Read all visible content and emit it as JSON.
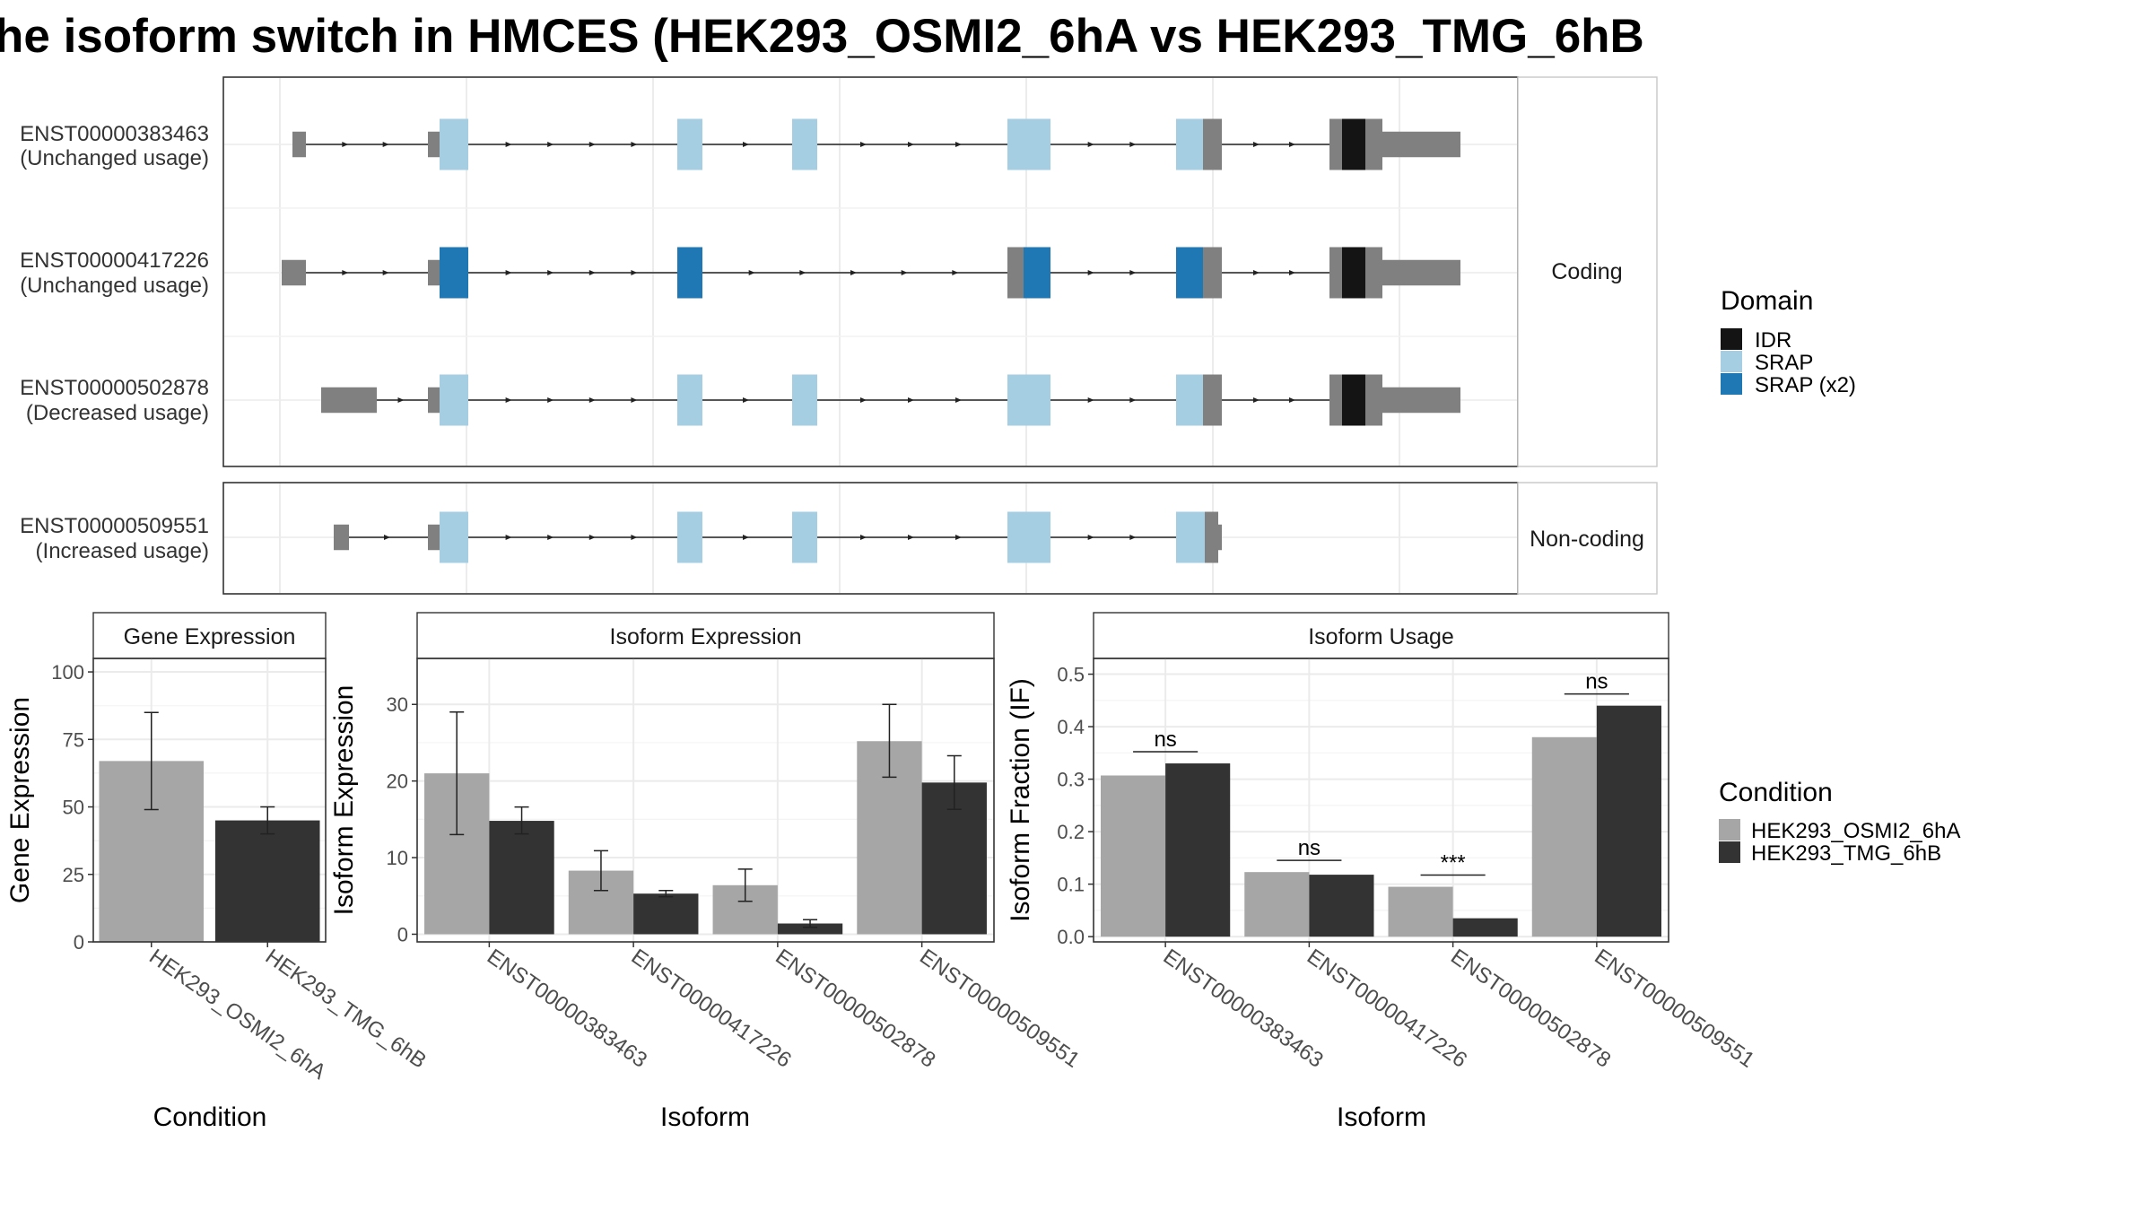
{
  "title": "he isoform switch in HMCES (HEK293_OSMI2_6hA vs HEK293_TMG_6hB",
  "colors": {
    "exon": "#808080",
    "idr": "#141414",
    "srap": "#a6cee3",
    "srap_x2": "#1f78b4",
    "cond_a": "#a6a6a6",
    "cond_b": "#333333"
  },
  "structure": {
    "coding_label": "Coding",
    "noncoding_label": "Non-coding",
    "transcripts": [
      {
        "id": "ENST00000383463",
        "usage": "(Unchanged usage)",
        "group": "coding"
      },
      {
        "id": "ENST00000417226",
        "usage": "(Unchanged usage)",
        "group": "coding"
      },
      {
        "id": "ENST00000502878",
        "usage": "(Decreased usage)",
        "group": "coding"
      },
      {
        "id": "ENST00000509551",
        "usage": "(Increased usage)",
        "group": "noncoding"
      }
    ]
  },
  "legend_domain": {
    "title": "Domain",
    "items": [
      {
        "label": "IDR",
        "color": "#141414"
      },
      {
        "label": "SRAP",
        "color": "#a6cee3"
      },
      {
        "label": "SRAP (x2)",
        "color": "#1f78b4"
      }
    ]
  },
  "legend_condition": {
    "title": "Condition",
    "items": [
      {
        "label": "HEK293_OSMI2_6hA",
        "color": "#a6a6a6"
      },
      {
        "label": "HEK293_TMG_6hB",
        "color": "#333333"
      }
    ]
  },
  "chart_data": [
    {
      "type": "bar",
      "title": "Gene Expression",
      "xlabel": "Condition",
      "ylabel": "Gene Expression",
      "ylim": [
        0,
        105
      ],
      "yticks": [
        0,
        25,
        50,
        75,
        100
      ],
      "categories": [
        "HEK293_OSMI2_6hA",
        "HEK293_TMG_6hB"
      ],
      "values": [
        67,
        45
      ],
      "errors": [
        [
          49,
          85
        ],
        [
          40,
          50
        ]
      ]
    },
    {
      "type": "bar",
      "title": "Isoform Expression",
      "xlabel": "Isoform",
      "ylabel": "Isoform Expression",
      "ylim": [
        -1,
        36
      ],
      "yticks": [
        0,
        10,
        20,
        30
      ],
      "categories": [
        "ENST00000383463",
        "ENST00000417226",
        "ENST00000502878",
        "ENST00000509551"
      ],
      "series": [
        {
          "name": "HEK293_OSMI2_6hA",
          "values": [
            21.0,
            8.3,
            6.4,
            25.2
          ],
          "errors": [
            [
              13.0,
              29.0
            ],
            [
              5.7,
              10.9
            ],
            [
              4.3,
              8.5
            ],
            [
              20.5,
              30.0
            ]
          ]
        },
        {
          "name": "HEK293_TMG_6hB",
          "values": [
            14.8,
            5.3,
            1.4,
            19.8
          ],
          "errors": [
            [
              13.1,
              16.6
            ],
            [
              4.9,
              5.7
            ],
            [
              0.9,
              1.9
            ],
            [
              16.3,
              23.3
            ]
          ]
        }
      ]
    },
    {
      "type": "bar",
      "title": "Isoform Usage",
      "xlabel": "Isoform",
      "ylabel": "Isoform Fraction (IF)",
      "ylim": [
        -0.01,
        0.53
      ],
      "yticks": [
        0.0,
        0.1,
        0.2,
        0.3,
        0.4,
        0.5
      ],
      "ytick_labels": [
        "0.0",
        "0.1",
        "0.2",
        "0.3",
        "0.4",
        "0.5"
      ],
      "categories": [
        "ENST00000383463",
        "ENST00000417226",
        "ENST00000502878",
        "ENST00000509551"
      ],
      "series": [
        {
          "name": "HEK293_OSMI2_6hA",
          "values": [
            0.307,
            0.123,
            0.095,
            0.38
          ]
        },
        {
          "name": "HEK293_TMG_6hB",
          "values": [
            0.33,
            0.118,
            0.035,
            0.44
          ]
        }
      ],
      "significance": [
        "ns",
        "ns",
        "***",
        "ns"
      ]
    }
  ]
}
